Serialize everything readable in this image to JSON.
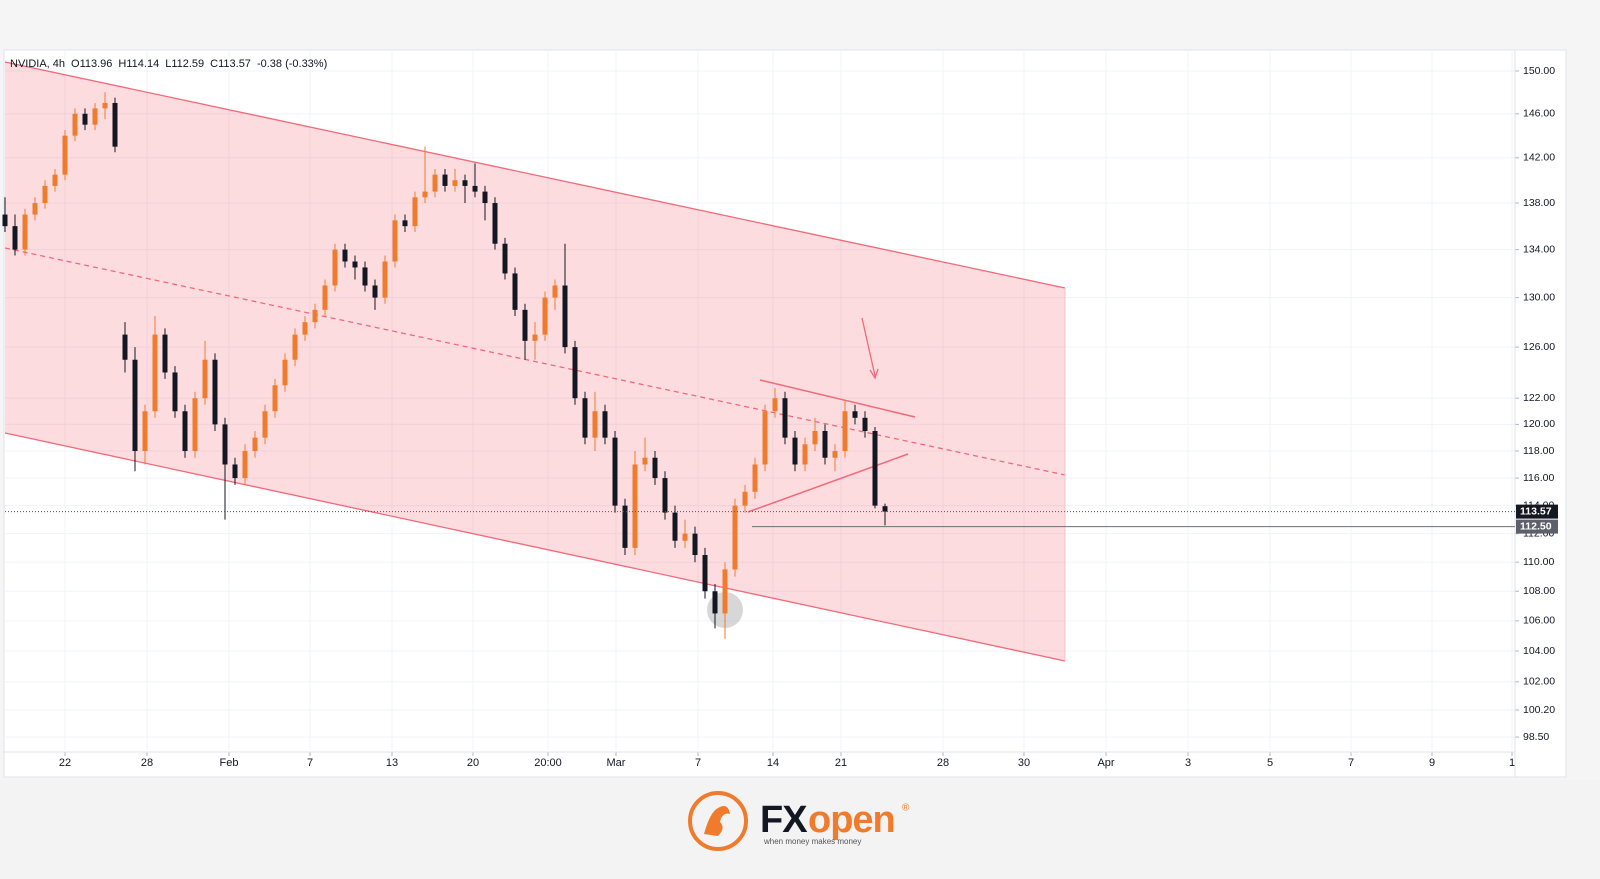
{
  "chart_data": {
    "type": "candlestick",
    "legend_texts": [
      "NVIDIA, 4h",
      "O113.96",
      "H114.14",
      "L112.59",
      "C113.57",
      "-0.38 (-0.33%)"
    ],
    "up_color": "#f07b2c",
    "down_color": "#131722",
    "log_scale": true,
    "grid": true,
    "xlim": [
      0,
      151
    ],
    "ylim": [
      97.7,
      152
    ],
    "xticks": [
      {
        "value": 6.0,
        "label": "22"
      },
      {
        "value": 14.2,
        "label": "28"
      },
      {
        "value": 22.4,
        "label": "Feb"
      },
      {
        "value": 30.5,
        "label": "7"
      },
      {
        "value": 38.7,
        "label": "13"
      },
      {
        "value": 46.8,
        "label": "20"
      },
      {
        "value": 54.3,
        "label": "20:00"
      },
      {
        "value": 61.1,
        "label": "Mar"
      },
      {
        "value": 69.3,
        "label": "7"
      },
      {
        "value": 76.8,
        "label": "14"
      },
      {
        "value": 83.6,
        "label": "21"
      },
      {
        "value": 93.8,
        "label": "28"
      },
      {
        "value": 101.9,
        "label": "30"
      },
      {
        "value": 110.1,
        "label": "Apr"
      },
      {
        "value": 118.3,
        "label": "3"
      },
      {
        "value": 126.5,
        "label": "5"
      },
      {
        "value": 134.6,
        "label": "7"
      },
      {
        "value": 142.7,
        "label": "9"
      },
      {
        "value": 150.7,
        "label": "1"
      }
    ],
    "yticks": [
      {
        "value": 150,
        "label": "150.00"
      },
      {
        "value": 146,
        "label": "146.00"
      },
      {
        "value": 142,
        "label": "142.00"
      },
      {
        "value": 138,
        "label": "138.00"
      },
      {
        "value": 134,
        "label": "134.00"
      },
      {
        "value": 130,
        "label": "130.00"
      },
      {
        "value": 126,
        "label": "126.00"
      },
      {
        "value": 122,
        "label": "122.00"
      },
      {
        "value": 120,
        "label": "120.00"
      },
      {
        "value": 118,
        "label": "118.00"
      },
      {
        "value": 116,
        "label": "116.00"
      },
      {
        "value": 114,
        "label": "114.00"
      },
      {
        "value": 112,
        "label": "112.00"
      },
      {
        "value": 110,
        "label": "110.00"
      },
      {
        "value": 108,
        "label": "108.00"
      },
      {
        "value": 106,
        "label": "106.00"
      },
      {
        "value": 104,
        "label": "104.00"
      },
      {
        "value": 102,
        "label": "102.00"
      },
      {
        "value": 100.2,
        "label": "100.20"
      },
      {
        "value": 98.5,
        "label": "98.50"
      }
    ],
    "price_labels": [
      113.57,
      {
        "value": 112.5,
        "label": "112.50"
      }
    ],
    "x": [
      0,
      1,
      2,
      3,
      4,
      5,
      6,
      7,
      8,
      9,
      10,
      11,
      12,
      13,
      14,
      15,
      16,
      17,
      18,
      19,
      20,
      21,
      22,
      23,
      24,
      25,
      26,
      27,
      28,
      29,
      30,
      31,
      32,
      33,
      34,
      35,
      36,
      37,
      38,
      39,
      40,
      41,
      42,
      43,
      44,
      45,
      46,
      47,
      48,
      49,
      50,
      51,
      52,
      53,
      54,
      55,
      56,
      57,
      58,
      59,
      60,
      61,
      62,
      63,
      64,
      65,
      66,
      67,
      68,
      69,
      70,
      71,
      72,
      73,
      74,
      75,
      76,
      77,
      78,
      79,
      80,
      81,
      82,
      83,
      84,
      85,
      86,
      87,
      88
    ],
    "ohlc": [
      [
        137,
        138.5,
        135.5,
        136
      ],
      [
        136,
        137,
        133.5,
        134
      ],
      [
        134,
        137.5,
        133.5,
        137
      ],
      [
        137,
        138.5,
        136.5,
        138
      ],
      [
        138,
        140,
        137.5,
        139.5
      ],
      [
        139.5,
        141,
        139,
        140.5
      ],
      [
        140.5,
        144.5,
        140,
        144
      ],
      [
        144,
        146.5,
        143.5,
        146
      ],
      [
        146,
        146.5,
        144.5,
        145
      ],
      [
        145,
        147,
        144.5,
        146.5
      ],
      [
        146.5,
        148,
        145.5,
        147
      ],
      [
        147,
        147.5,
        142.5,
        143
      ],
      [
        127,
        128,
        124,
        125
      ],
      [
        125,
        126,
        116.5,
        118
      ],
      [
        118,
        121.5,
        117,
        121
      ],
      [
        121,
        128.5,
        120.5,
        127
      ],
      [
        127,
        127.5,
        123.5,
        124
      ],
      [
        124,
        124.5,
        120.5,
        121
      ],
      [
        121,
        121.5,
        117.5,
        118
      ],
      [
        118,
        122.5,
        117.5,
        122
      ],
      [
        122,
        126.5,
        121.5,
        125
      ],
      [
        125,
        125.5,
        119.5,
        120
      ],
      [
        120,
        120.5,
        113,
        117
      ],
      [
        117,
        117.5,
        115.5,
        116
      ],
      [
        116,
        118.5,
        115.5,
        118
      ],
      [
        118,
        119.5,
        117.5,
        119
      ],
      [
        119,
        121.5,
        118.5,
        121
      ],
      [
        121,
        123.5,
        120.5,
        123
      ],
      [
        123,
        125.5,
        122.5,
        125
      ],
      [
        125,
        127.5,
        124.5,
        127
      ],
      [
        127,
        128.5,
        126.5,
        128
      ],
      [
        128,
        129.5,
        127.5,
        129
      ],
      [
        129,
        131.5,
        128.5,
        131
      ],
      [
        131,
        134.5,
        130.5,
        134
      ],
      [
        134,
        134.5,
        132.5,
        133
      ],
      [
        133,
        133.5,
        131.5,
        132.5
      ],
      [
        132.5,
        133,
        130.5,
        131
      ],
      [
        131,
        131.5,
        129,
        130
      ],
      [
        130,
        133.5,
        129.5,
        133
      ],
      [
        133,
        137,
        132.5,
        136.5
      ],
      [
        136.5,
        137,
        135.5,
        136
      ],
      [
        136,
        139,
        135.5,
        138.5
      ],
      [
        138.5,
        143,
        138,
        139
      ],
      [
        139,
        141,
        138.5,
        140.5
      ],
      [
        140.5,
        141,
        139,
        139.5
      ],
      [
        139.5,
        141,
        139,
        140
      ],
      [
        140,
        140.5,
        138,
        139.5
      ],
      [
        139.5,
        141.5,
        138.5,
        139
      ],
      [
        139,
        139.5,
        136.5,
        138
      ],
      [
        138,
        138.5,
        134,
        134.5
      ],
      [
        134.5,
        135,
        131.5,
        132
      ],
      [
        132,
        132.5,
        128.5,
        129
      ],
      [
        129,
        129.5,
        125,
        126.5
      ],
      [
        126.5,
        128,
        125,
        127
      ],
      [
        127,
        130.5,
        126.5,
        130
      ],
      [
        130,
        131.5,
        129,
        131
      ],
      [
        131,
        134.5,
        125.5,
        126
      ],
      [
        126,
        126.5,
        121.5,
        122
      ],
      [
        122,
        122.5,
        118.5,
        119
      ],
      [
        119,
        122.5,
        118,
        121
      ],
      [
        121,
        121.5,
        118.5,
        119
      ],
      [
        119,
        119.5,
        113.5,
        114
      ],
      [
        114,
        114.5,
        110.5,
        111
      ],
      [
        111,
        118,
        110.5,
        117
      ],
      [
        117,
        119,
        116.5,
        117.5
      ],
      [
        117.5,
        118,
        115.5,
        116
      ],
      [
        116,
        116.5,
        113,
        113.5
      ],
      [
        113.5,
        114,
        111,
        111.5
      ],
      [
        111.5,
        113,
        111,
        112
      ],
      [
        112,
        112.5,
        110,
        110.5
      ],
      [
        110.5,
        111,
        107.5,
        108
      ],
      [
        108,
        108.5,
        105.5,
        106.5
      ],
      [
        106.5,
        110,
        104.8,
        109.5
      ],
      [
        109.5,
        114.5,
        109,
        114
      ],
      [
        114,
        115.5,
        113.5,
        115
      ],
      [
        115,
        117.5,
        114.5,
        117
      ],
      [
        117,
        121.5,
        116.5,
        121
      ],
      [
        121,
        122.8,
        120.5,
        122
      ],
      [
        122,
        122.5,
        118.5,
        119
      ],
      [
        119,
        119.5,
        116.5,
        117
      ],
      [
        117,
        119,
        116.5,
        118.5
      ],
      [
        118.5,
        120.5,
        118,
        119.5
      ],
      [
        119.5,
        120,
        117,
        117.5
      ],
      [
        117.5,
        118.5,
        116.5,
        118
      ],
      [
        118,
        121.8,
        117.5,
        121
      ],
      [
        121,
        121.5,
        120,
        120.5
      ],
      [
        120.5,
        121,
        119,
        119.5
      ],
      [
        119.5,
        119.8,
        113.8,
        114
      ],
      [
        113.96,
        114.14,
        112.59,
        113.57
      ]
    ]
  },
  "logo": {
    "fx": "FX",
    "open": "open",
    "mark": "®",
    "tagline": "when money makes money"
  }
}
